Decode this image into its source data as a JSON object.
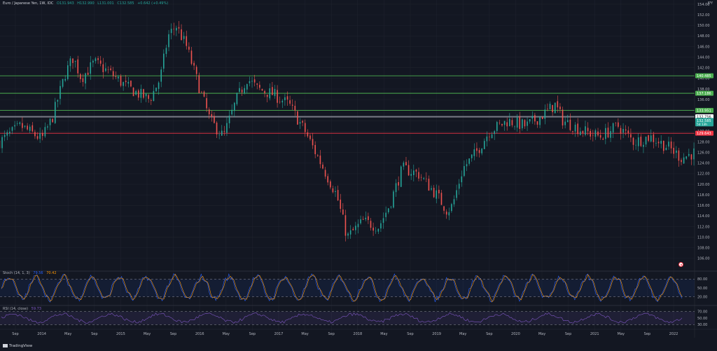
{
  "header": {
    "symbol": "Euro / Japanese Yen, 1W, IDC",
    "open": "O131.943",
    "high": "H132.990",
    "low": "L131.001",
    "close": "C132.585",
    "change": "+0.642 (+0.49%)"
  },
  "corner_label": "JPY",
  "stoch_label": {
    "name": "Stoch (14, 1, 3)",
    "k": "79.56",
    "d": "70.42"
  },
  "rsi_label": {
    "name": "RSI (14, close)",
    "value": "59.73"
  },
  "branding": "TradingView",
  "colors": {
    "background": "#131722",
    "up": "#26a69a",
    "down": "#ef5350",
    "support_line": "#4caf50",
    "resistance_red": "#f23645",
    "channel": "#c2185b",
    "stoch_k": "#2962ff",
    "stoch_d": "#ff9800",
    "rsi": "#7e57c2"
  },
  "chart_data": {
    "type": "candlestick",
    "interval": "1W",
    "y_range": [
      104,
      154
    ],
    "x_labels": [
      "Sep",
      "2014",
      "May",
      "Sep",
      "2015",
      "May",
      "Sep",
      "2016",
      "May",
      "Sep",
      "2017",
      "May",
      "Sep",
      "2018",
      "May",
      "Sep",
      "2019",
      "May",
      "Sep",
      "2020",
      "May",
      "Sep",
      "2021",
      "May",
      "Sep",
      "2022"
    ],
    "y_ticks": [
      154,
      152,
      150,
      148,
      146,
      144,
      142,
      140,
      138,
      136,
      134,
      132,
      130,
      128,
      126,
      124,
      122,
      120,
      118,
      116,
      114,
      112,
      110,
      108,
      106
    ],
    "horizontal_levels": [
      {
        "value": "140.485",
        "color": "#4caf50"
      },
      {
        "value": "137.186",
        "color": "#4caf50"
      },
      {
        "value": "133.951",
        "color": "#4caf50"
      },
      {
        "value": "132.756",
        "color": "#787b86"
      },
      {
        "value": "129.643",
        "color": "#f23645"
      }
    ],
    "last_price": {
      "value": "132.585",
      "countdown": "5d 13h"
    },
    "price_path": [
      [
        0,
        128
      ],
      [
        0.8,
        131
      ],
      [
        1.6,
        128.5
      ],
      [
        2.0,
        132.5
      ],
      [
        2.5,
        141
      ],
      [
        2.8,
        144
      ],
      [
        3.1,
        140
      ],
      [
        3.6,
        143
      ],
      [
        4.2,
        141
      ],
      [
        4.8,
        138.5
      ],
      [
        5.3,
        137
      ],
      [
        5.7,
        136
      ],
      [
        6.1,
        140
      ],
      [
        6.4,
        148
      ],
      [
        6.7,
        150
      ],
      [
        7.1,
        146
      ],
      [
        7.6,
        138
      ],
      [
        8.0,
        132
      ],
      [
        8.5,
        129
      ],
      [
        9.0,
        136
      ],
      [
        9.4,
        140
      ],
      [
        9.8,
        138
      ],
      [
        10.4,
        137
      ],
      [
        11.0,
        135
      ],
      [
        11.6,
        130
      ],
      [
        12.2,
        124
      ],
      [
        12.8,
        118
      ],
      [
        13.2,
        110
      ],
      [
        13.8,
        113
      ],
      [
        14.4,
        112
      ],
      [
        14.8,
        116
      ],
      [
        15.3,
        123
      ],
      [
        15.9,
        122
      ],
      [
        16.6,
        118
      ],
      [
        17.0,
        115
      ],
      [
        17.2,
        116
      ],
      [
        17.6,
        123
      ],
      [
        18.1,
        126
      ],
      [
        18.6,
        130
      ],
      [
        19.3,
        132
      ],
      [
        20.0,
        131
      ],
      [
        20.6,
        133
      ],
      [
        21.1,
        135
      ],
      [
        21.4,
        132
      ],
      [
        22.2,
        130
      ],
      [
        22.8,
        129
      ],
      [
        23.5,
        131
      ],
      [
        24.1,
        128
      ],
      [
        24.7,
        129
      ],
      [
        25.4,
        127
      ],
      [
        25.9,
        125
      ],
      [
        26.4,
        126
      ],
      [
        27.2,
        124
      ],
      [
        27.8,
        121
      ],
      [
        28.5,
        118
      ],
      [
        29.0,
        117
      ],
      [
        29.6,
        119
      ],
      [
        30.2,
        120
      ],
      [
        30.8,
        121
      ],
      [
        31.3,
        118
      ],
      [
        31.8,
        116
      ],
      [
        32.1,
        115
      ],
      [
        32.6,
        119
      ],
      [
        33.2,
        122
      ],
      [
        33.6,
        124
      ],
      [
        34.0,
        123
      ],
      [
        34.6,
        123
      ],
      [
        35.2,
        124
      ],
      [
        35.9,
        126
      ],
      [
        36.6,
        129
      ],
      [
        37.2,
        130
      ],
      [
        37.7,
        133
      ],
      [
        38.2,
        130
      ],
      [
        38.8,
        129
      ],
      [
        39.4,
        128
      ],
      [
        40.0,
        129
      ],
      [
        40.4,
        131
      ],
      [
        40.9,
        128
      ],
      [
        41.4,
        130
      ],
      [
        41.8,
        130
      ],
      [
        42.1,
        132.6
      ]
    ],
    "channel": {
      "upper": [
        [
          30.8,
          123
        ],
        [
          42.5,
          141
        ]
      ],
      "lower": [
        [
          31.8,
          114.5
        ],
        [
          42.2,
          130
        ]
      ]
    },
    "stoch": {
      "ticks": [
        "80.00",
        "50.00",
        "20.00"
      ],
      "k_last": 79.56,
      "d_last": 70.42
    },
    "rsi": {
      "ticks": [
        "70.00",
        "50.00",
        "30.00"
      ],
      "last": 59.73
    }
  }
}
